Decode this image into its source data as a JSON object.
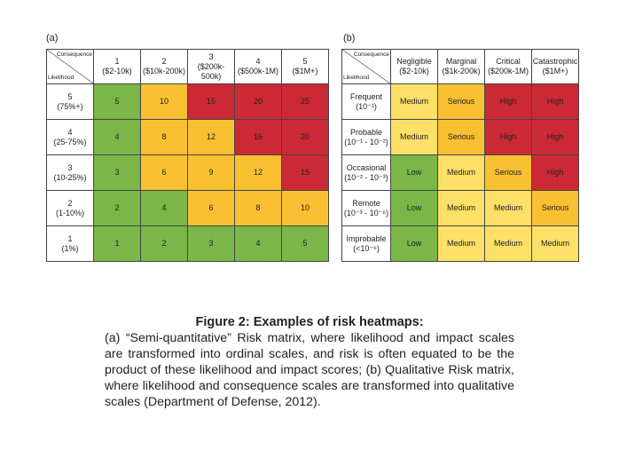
{
  "colors": {
    "G": "#7ab648",
    "A": "#f9c132",
    "R": "#cc2936",
    "Y": "#fde068"
  },
  "panel_a": {
    "label": "(a)",
    "corner_top": "Consequence",
    "corner_bottom": "Likelihood",
    "columns": [
      [
        "1",
        "($2-10k)"
      ],
      [
        "2",
        "($10k-200k)"
      ],
      [
        "3",
        "($200k-500k)"
      ],
      [
        "4",
        "($500k-1M)"
      ],
      [
        "5",
        "($1M+)"
      ]
    ],
    "rows": [
      {
        "label": [
          "5",
          "(75%+)"
        ],
        "cells": [
          [
            "5",
            "G"
          ],
          [
            "10",
            "A"
          ],
          [
            "15",
            "R"
          ],
          [
            "20",
            "R"
          ],
          [
            "25",
            "R"
          ]
        ]
      },
      {
        "label": [
          "4",
          "(25-75%)"
        ],
        "cells": [
          [
            "4",
            "G"
          ],
          [
            "8",
            "A"
          ],
          [
            "12",
            "A"
          ],
          [
            "16",
            "R"
          ],
          [
            "20",
            "R"
          ]
        ]
      },
      {
        "label": [
          "3",
          "(10-25%)"
        ],
        "cells": [
          [
            "3",
            "G"
          ],
          [
            "6",
            "A"
          ],
          [
            "9",
            "A"
          ],
          [
            "12",
            "A"
          ],
          [
            "15",
            "R"
          ]
        ]
      },
      {
        "label": [
          "2",
          "(1-10%)"
        ],
        "cells": [
          [
            "2",
            "G"
          ],
          [
            "4",
            "G"
          ],
          [
            "6",
            "A"
          ],
          [
            "8",
            "A"
          ],
          [
            "10",
            "A"
          ]
        ]
      },
      {
        "label": [
          "1",
          "(1%)"
        ],
        "cells": [
          [
            "1",
            "G"
          ],
          [
            "2",
            "G"
          ],
          [
            "3",
            "G"
          ],
          [
            "4",
            "G"
          ],
          [
            "5",
            "G"
          ]
        ]
      }
    ]
  },
  "panel_b": {
    "label": "(b)",
    "corner_top": "Consequence",
    "corner_bottom": "Likelihood",
    "columns": [
      [
        "Negligible",
        "($2-10k)"
      ],
      [
        "Marginal",
        "($1k-200k)"
      ],
      [
        "Critical",
        "($200k-1M)"
      ],
      [
        "Catastrophic",
        "($1M+)"
      ]
    ],
    "rows": [
      {
        "label": [
          "Frequent",
          "(10⁻¹)"
        ],
        "cells": [
          [
            "Medium",
            "Y"
          ],
          [
            "Serious",
            "A"
          ],
          [
            "High",
            "R"
          ],
          [
            "High",
            "R"
          ]
        ]
      },
      {
        "label": [
          "Probable",
          "(10⁻¹ - 10⁻²)"
        ],
        "cells": [
          [
            "Medium",
            "Y"
          ],
          [
            "Serious",
            "A"
          ],
          [
            "High",
            "R"
          ],
          [
            "High",
            "R"
          ]
        ]
      },
      {
        "label": [
          "Occasional",
          "(10⁻² - 10⁻³)"
        ],
        "cells": [
          [
            "Low",
            "G"
          ],
          [
            "Medium",
            "Y"
          ],
          [
            "Serious",
            "A"
          ],
          [
            "High",
            "R"
          ]
        ]
      },
      {
        "label": [
          "Remote",
          "(10⁻³ - 10⁻⁶)"
        ],
        "cells": [
          [
            "Low",
            "G"
          ],
          [
            "Medium",
            "Y"
          ],
          [
            "Medium",
            "Y"
          ],
          [
            "Serious",
            "A"
          ]
        ]
      },
      {
        "label": [
          "Improbable",
          "(<10⁻⁶)"
        ],
        "cells": [
          [
            "Low",
            "G"
          ],
          [
            "Medium",
            "Y"
          ],
          [
            "Medium",
            "Y"
          ],
          [
            "Medium",
            "Y"
          ]
        ]
      }
    ]
  },
  "caption": {
    "title": "Figure 2: Examples of risk heatmaps:",
    "body": "(a) “Semi-quantitative” Risk matrix, where likelihood and impact scales are transformed into ordinal scales, and risk is often equated to be the product of these likelihood and impact scores; (b) Qualitative Risk matrix, where likelihood and consequence scales are transformed into qualitative scales (Department of Defense, 2012)."
  }
}
